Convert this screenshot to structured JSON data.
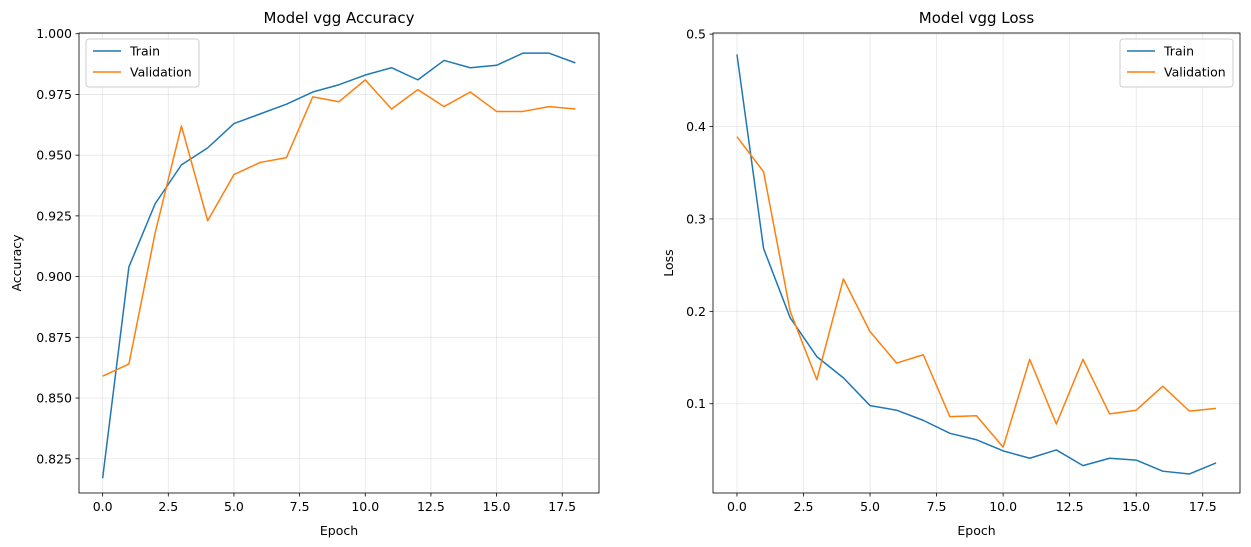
{
  "chart_data": [
    {
      "type": "line",
      "title": "Model vgg Accuracy",
      "xlabel": "Epoch",
      "ylabel": "Accuracy",
      "xlim": [
        -0.9,
        18.9
      ],
      "ylim": [
        0.8109,
        1.0003
      ],
      "xticks": [
        0,
        2.5,
        5,
        7.5,
        10,
        12.5,
        15,
        17.5
      ],
      "xtick_labels": [
        "0.0",
        "2.5",
        "5.0",
        "7.5",
        "10.0",
        "12.5",
        "15.0",
        "17.5"
      ],
      "yticks": [
        0.825,
        0.85,
        0.875,
        0.9,
        0.925,
        0.95,
        0.975,
        1.0
      ],
      "ytick_labels": [
        "0.825",
        "0.850",
        "0.875",
        "0.900",
        "0.925",
        "0.950",
        "0.975",
        "1.000"
      ],
      "grid": true,
      "legend_position": "top-left",
      "x": [
        0,
        1,
        2,
        3,
        4,
        5,
        6,
        7,
        8,
        9,
        10,
        11,
        12,
        13,
        14,
        15,
        16,
        17,
        18
      ],
      "series": [
        {
          "name": "Train",
          "color": "#1f77b4",
          "values": [
            0.817,
            0.904,
            0.93,
            0.946,
            0.953,
            0.963,
            0.967,
            0.971,
            0.976,
            0.979,
            0.983,
            0.986,
            0.981,
            0.989,
            0.986,
            0.987,
            0.992,
            0.992,
            0.988
          ]
        },
        {
          "name": "Validation",
          "color": "#ff7f0e",
          "values": [
            0.859,
            0.864,
            0.918,
            0.962,
            0.923,
            0.942,
            0.947,
            0.949,
            0.974,
            0.972,
            0.981,
            0.969,
            0.977,
            0.97,
            0.976,
            0.968,
            0.968,
            0.97,
            0.969
          ]
        }
      ]
    },
    {
      "type": "line",
      "title": "Model vgg Loss",
      "xlabel": "Epoch",
      "ylabel": "Loss",
      "xlim": [
        -0.9,
        18.9
      ],
      "ylim": [
        0.0034,
        0.5012
      ],
      "xticks": [
        0,
        2.5,
        5,
        7.5,
        10,
        12.5,
        15,
        17.5
      ],
      "xtick_labels": [
        "0.0",
        "2.5",
        "5.0",
        "7.5",
        "10.0",
        "12.5",
        "15.0",
        "17.5"
      ],
      "yticks": [
        0.1,
        0.2,
        0.3,
        0.4,
        0.5
      ],
      "ytick_labels": [
        "0.1",
        "0.2",
        "0.3",
        "0.4",
        "0.5"
      ],
      "grid": true,
      "legend_position": "top-right",
      "x": [
        0,
        1,
        2,
        3,
        4,
        5,
        6,
        7,
        8,
        9,
        10,
        11,
        12,
        13,
        14,
        15,
        16,
        17,
        18
      ],
      "series": [
        {
          "name": "Train",
          "color": "#1f77b4",
          "values": [
            0.478,
            0.268,
            0.193,
            0.151,
            0.128,
            0.098,
            0.093,
            0.082,
            0.068,
            0.061,
            0.049,
            0.041,
            0.05,
            0.033,
            0.041,
            0.039,
            0.027,
            0.024,
            0.036
          ]
        },
        {
          "name": "Validation",
          "color": "#ff7f0e",
          "values": [
            0.389,
            0.351,
            0.2,
            0.126,
            0.235,
            0.178,
            0.144,
            0.153,
            0.086,
            0.087,
            0.053,
            0.148,
            0.078,
            0.148,
            0.089,
            0.093,
            0.119,
            0.092,
            0.095
          ]
        }
      ]
    }
  ]
}
